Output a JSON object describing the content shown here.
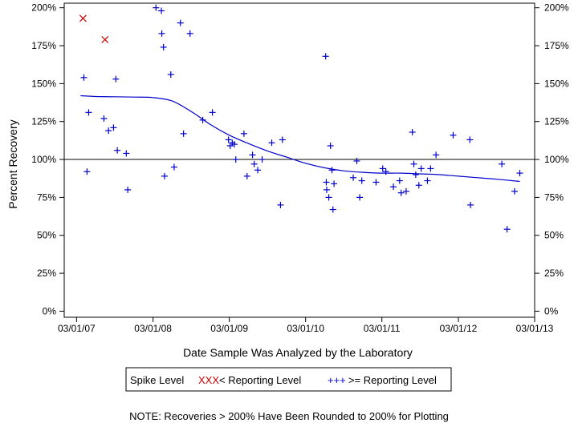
{
  "chart_data": {
    "type": "scatter",
    "xlabel": "Date Sample Was Analyzed by the Laboratory",
    "ylabel": "Percent Recovery",
    "x_tick_labels": [
      "03/01/07",
      "03/01/08",
      "03/01/09",
      "03/01/10",
      "03/01/11",
      "03/01/12",
      "03/01/13"
    ],
    "x_ticks": [
      "2007-03-01",
      "2008-03-01",
      "2009-03-01",
      "2010-03-01",
      "2011-03-01",
      "2012-03-01",
      "2013-03-01"
    ],
    "xlim": [
      "2007-01-01",
      "2013-03-01"
    ],
    "y_tick_labels": [
      "0%",
      "25%",
      "50%",
      "75%",
      "100%",
      "125%",
      "150%",
      "175%",
      "200%"
    ],
    "y_ticks": [
      0,
      25,
      50,
      75,
      100,
      125,
      150,
      175,
      200
    ],
    "ylim": [
      -4,
      203
    ],
    "reference_line": 100,
    "grid": false,
    "legend": {
      "title": "Spike Level",
      "entries": [
        {
          "symbol": "XXX",
          "label": "< Reporting Level",
          "color": "#cc0000"
        },
        {
          "symbol": "+++",
          "label": ">= Reporting Level",
          "color": "#0000cc"
        }
      ],
      "position": "bottom-center"
    },
    "note": "NOTE: Recoveries > 200% Have Been Rounded to 200% for Plotting",
    "series": [
      {
        "marker": "x",
        "color": "#cc0000",
        "points": [
          {
            "x": "2007-04-01",
            "y": 193
          },
          {
            "x": "2007-07-15",
            "y": 179
          }
        ]
      },
      {
        "marker": "+",
        "color": "#0000cc",
        "points": [
          {
            "x": "2007-04-05",
            "y": 154
          },
          {
            "x": "2007-04-20",
            "y": 92
          },
          {
            "x": "2007-04-28",
            "y": 131
          },
          {
            "x": "2007-07-10",
            "y": 127
          },
          {
            "x": "2007-08-01",
            "y": 119
          },
          {
            "x": "2007-08-25",
            "y": 121
          },
          {
            "x": "2007-09-05",
            "y": 153
          },
          {
            "x": "2007-09-12",
            "y": 106
          },
          {
            "x": "2007-10-25",
            "y": 104
          },
          {
            "x": "2007-11-01",
            "y": 80
          },
          {
            "x": "2008-03-15",
            "y": 200
          },
          {
            "x": "2008-04-10",
            "y": 198
          },
          {
            "x": "2008-04-12",
            "y": 183
          },
          {
            "x": "2008-04-20",
            "y": 174
          },
          {
            "x": "2008-04-25",
            "y": 89
          },
          {
            "x": "2008-05-25",
            "y": 156
          },
          {
            "x": "2008-06-10",
            "y": 95
          },
          {
            "x": "2008-07-10",
            "y": 190
          },
          {
            "x": "2008-07-25",
            "y": 117
          },
          {
            "x": "2008-08-25",
            "y": 183
          },
          {
            "x": "2008-10-25",
            "y": 126
          },
          {
            "x": "2008-12-10",
            "y": 131
          },
          {
            "x": "2009-02-25",
            "y": 113
          },
          {
            "x": "2009-03-05",
            "y": 109
          },
          {
            "x": "2009-03-15",
            "y": 111
          },
          {
            "x": "2009-03-25",
            "y": 110
          },
          {
            "x": "2009-04-01",
            "y": 100
          },
          {
            "x": "2009-05-10",
            "y": 117
          },
          {
            "x": "2009-05-25",
            "y": 89
          },
          {
            "x": "2009-06-20",
            "y": 103
          },
          {
            "x": "2009-06-28",
            "y": 97
          },
          {
            "x": "2009-07-15",
            "y": 93
          },
          {
            "x": "2009-08-05",
            "y": 100
          },
          {
            "x": "2009-09-20",
            "y": 111
          },
          {
            "x": "2009-11-01",
            "y": 70
          },
          {
            "x": "2009-11-10",
            "y": 113
          },
          {
            "x": "2010-06-05",
            "y": 168
          },
          {
            "x": "2010-06-08",
            "y": 85
          },
          {
            "x": "2010-06-10",
            "y": 80
          },
          {
            "x": "2010-06-20",
            "y": 75
          },
          {
            "x": "2010-06-28",
            "y": 109
          },
          {
            "x": "2010-07-05",
            "y": 93
          },
          {
            "x": "2010-07-10",
            "y": 67
          },
          {
            "x": "2010-07-15",
            "y": 84
          },
          {
            "x": "2010-10-15",
            "y": 88
          },
          {
            "x": "2010-11-01",
            "y": 99
          },
          {
            "x": "2010-11-15",
            "y": 75
          },
          {
            "x": "2010-11-25",
            "y": 86
          },
          {
            "x": "2011-02-01",
            "y": 85
          },
          {
            "x": "2011-03-05",
            "y": 94
          },
          {
            "x": "2011-03-20",
            "y": 92
          },
          {
            "x": "2011-04-25",
            "y": 82
          },
          {
            "x": "2011-05-25",
            "y": 86
          },
          {
            "x": "2011-06-01",
            "y": 78
          },
          {
            "x": "2011-06-25",
            "y": 79
          },
          {
            "x": "2011-07-25",
            "y": 118
          },
          {
            "x": "2011-08-01",
            "y": 97
          },
          {
            "x": "2011-08-10",
            "y": 90
          },
          {
            "x": "2011-08-25",
            "y": 83
          },
          {
            "x": "2011-09-05",
            "y": 94
          },
          {
            "x": "2011-10-05",
            "y": 86
          },
          {
            "x": "2011-10-20",
            "y": 94
          },
          {
            "x": "2011-11-15",
            "y": 103
          },
          {
            "x": "2012-02-05",
            "y": 116
          },
          {
            "x": "2012-04-25",
            "y": 113
          },
          {
            "x": "2012-04-28",
            "y": 70
          },
          {
            "x": "2012-09-25",
            "y": 97
          },
          {
            "x": "2012-10-20",
            "y": 54
          },
          {
            "x": "2012-11-25",
            "y": 79
          },
          {
            "x": "2012-12-20",
            "y": 91
          }
        ]
      }
    ],
    "trend_line": {
      "color": "#0000cc",
      "points": [
        {
          "x": "2007-03-20",
          "y": 142
        },
        {
          "x": "2007-06-01",
          "y": 141.5
        },
        {
          "x": "2007-09-01",
          "y": 141.3
        },
        {
          "x": "2007-12-01",
          "y": 141.1
        },
        {
          "x": "2008-03-01",
          "y": 140.8
        },
        {
          "x": "2008-06-01",
          "y": 138.5
        },
        {
          "x": "2008-09-01",
          "y": 131.5
        },
        {
          "x": "2008-12-01",
          "y": 123
        },
        {
          "x": "2009-03-01",
          "y": 116
        },
        {
          "x": "2009-06-01",
          "y": 110.5
        },
        {
          "x": "2009-09-01",
          "y": 105.5
        },
        {
          "x": "2009-12-01",
          "y": 101.5
        },
        {
          "x": "2010-03-01",
          "y": 97.5
        },
        {
          "x": "2010-06-01",
          "y": 94.5
        },
        {
          "x": "2010-09-01",
          "y": 92.5
        },
        {
          "x": "2010-12-01",
          "y": 91.5
        },
        {
          "x": "2011-03-01",
          "y": 91
        },
        {
          "x": "2011-06-01",
          "y": 91
        },
        {
          "x": "2011-09-01",
          "y": 90.5
        },
        {
          "x": "2011-12-01",
          "y": 90
        },
        {
          "x": "2012-03-01",
          "y": 89
        },
        {
          "x": "2012-06-01",
          "y": 88
        },
        {
          "x": "2012-09-01",
          "y": 87
        },
        {
          "x": "2012-12-20",
          "y": 85.5
        }
      ]
    }
  }
}
